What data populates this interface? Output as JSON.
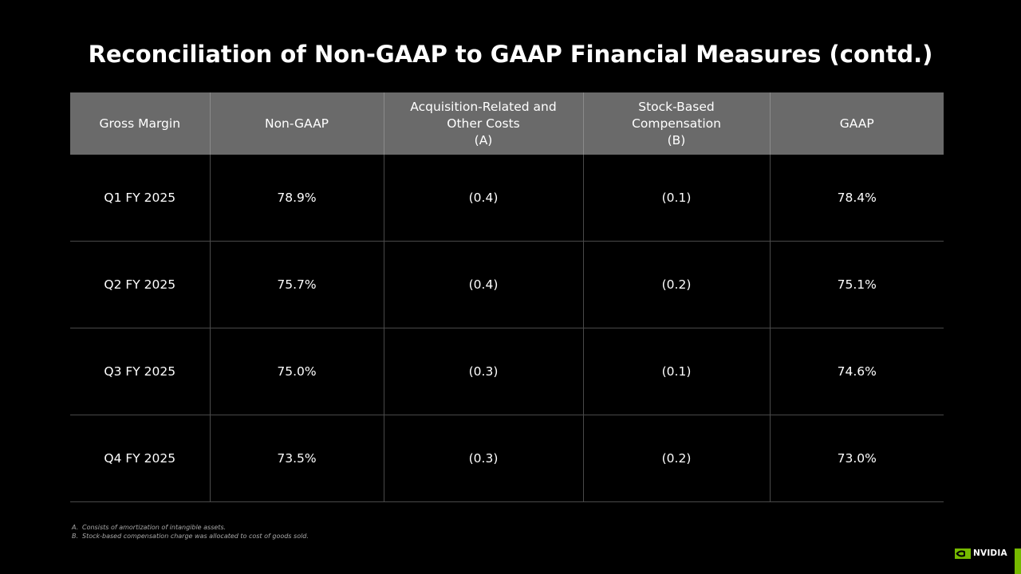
{
  "title": "Reconciliation of Non-GAAP to GAAP Financial Measures (contd.)",
  "table": {
    "headers": [
      {
        "lines": [
          "Gross Margin"
        ]
      },
      {
        "lines": [
          "Non-GAAP"
        ]
      },
      {
        "lines": [
          "Acquisition-Related and",
          "Other Costs",
          "(A)"
        ]
      },
      {
        "lines": [
          "Stock-Based",
          "Compensation",
          "(B)"
        ]
      },
      {
        "lines": [
          "GAAP"
        ]
      }
    ],
    "rows": [
      [
        "Q1 FY 2025",
        "78.9%",
        "(0.4)",
        "(0.1)",
        "78.4%"
      ],
      [
        "Q2 FY 2025",
        "75.7%",
        "(0.4)",
        "(0.2)",
        "75.1%"
      ],
      [
        "Q3 FY 2025",
        "75.0%",
        "(0.3)",
        "(0.1)",
        "74.6%"
      ],
      [
        "Q4 FY 2025",
        "73.5%",
        "(0.3)",
        "(0.2)",
        "73.0%"
      ]
    ]
  },
  "footnotes": [
    {
      "key": "A.",
      "text": "Consists of amortization of intangible assets."
    },
    {
      "key": "B.",
      "text": "Stock-based compensation charge was allocated to cost of goods sold."
    }
  ],
  "logo": {
    "text": "NVIDIA",
    "icon": "nvidia-eye-icon",
    "color": "#76b900"
  },
  "colors": {
    "background": "#000000",
    "header_fill": "#6a6a6a",
    "accent": "#76b900"
  }
}
